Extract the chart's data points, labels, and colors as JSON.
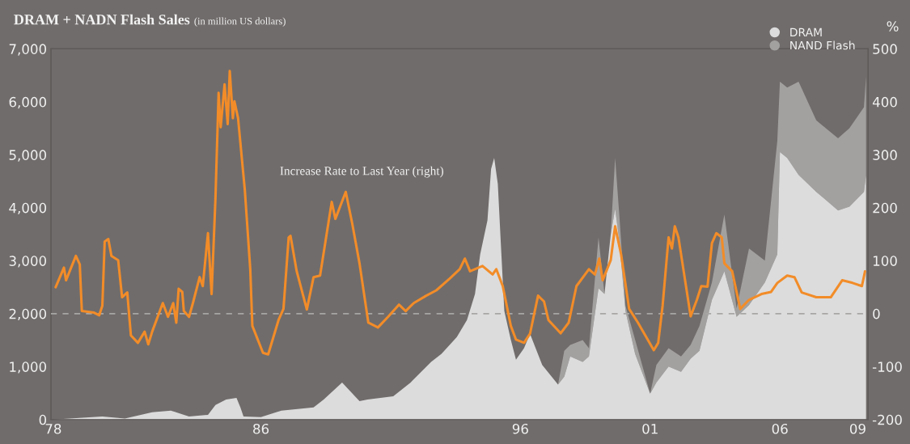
{
  "chart_data": {
    "type": "area",
    "title": "DRAM + NADN Flash Sales",
    "subtitle": "(in million US dollars)",
    "y2label": "%",
    "annotations": [
      "Increase Rate to Last Year (right)"
    ],
    "stacked": true,
    "x": [
      1978.0,
      1979.89,
      1980.76,
      1981.81,
      1982.53,
      1983.23,
      1983.96,
      1984.25,
      1984.66,
      1985.06,
      1985.21,
      1985.33,
      1986.0,
      1986.79,
      1988.03,
      1988.42,
      1989.13,
      1989.8,
      1990.11,
      1991.1,
      1991.77,
      1992.56,
      1992.96,
      1993.55,
      1993.94,
      1994.25,
      1994.45,
      1994.73,
      1994.87,
      1994.99,
      1995.13,
      1995.24,
      1995.38,
      1995.63,
      1995.83,
      1996.14,
      1996.37,
      1996.84,
      1997.45,
      1997.69,
      1997.92,
      1998.4,
      1998.64,
      1999.01,
      1999.24,
      1999.48,
      1999.65,
      1999.81,
      2000.05,
      2000.42,
      2001.0,
      2001.24,
      2001.71,
      2002.19,
      2002.56,
      2002.9,
      2003.38,
      2003.86,
      2004.33,
      2004.81,
      2005.42,
      2005.9,
      2006.0,
      2006.28,
      2006.72,
      2007.4,
      2008.24,
      2008.68,
      2009.24,
      2009.32
    ],
    "series": [
      {
        "name": "DRAM",
        "color": "#dcdcdc",
        "values": [
          0,
          60,
          20,
          140,
          170,
          60,
          90,
          275,
          380,
          410,
          230,
          60,
          45,
          170,
          230,
          380,
          700,
          350,
          380,
          440,
          700,
          1090,
          1240,
          1560,
          1880,
          2370,
          3120,
          3760,
          4730,
          4940,
          4450,
          3380,
          2050,
          1510,
          1130,
          1350,
          1620,
          1030,
          660,
          810,
          1190,
          1090,
          1190,
          2480,
          2370,
          3490,
          3980,
          3380,
          2050,
          1240,
          490,
          700,
          1000,
          900,
          1150,
          1300,
          2260,
          2800,
          1940,
          2160,
          2590,
          3120,
          5050,
          4940,
          4620,
          4300,
          3950,
          4020,
          4300,
          4620
        ]
      },
      {
        "name": "NAND Flash",
        "color": "#a3a1a0",
        "values": [
          0,
          0,
          0,
          0,
          0,
          0,
          0,
          0,
          0,
          0,
          0,
          0,
          0,
          0,
          0,
          0,
          0,
          0,
          0,
          0,
          0,
          0,
          0,
          0,
          0,
          0,
          0,
          0,
          0,
          0,
          0,
          0,
          0,
          0,
          0,
          0,
          0,
          0,
          0,
          490,
          220,
          410,
          160,
          960,
          0,
          0,
          960,
          490,
          100,
          270,
          0,
          330,
          350,
          290,
          260,
          470,
          330,
          1070,
          160,
          1070,
          410,
          2140,
          1330,
          1330,
          1760,
          1350,
          1360,
          1480,
          1600,
          1860
        ]
      },
      {
        "type": "line",
        "axis": "y2",
        "color": "#f28c28",
        "x": [
          1978.09,
          1978.41,
          1978.49,
          1978.87,
          1979.02,
          1979.1,
          1979.57,
          1979.77,
          1979.89,
          1979.98,
          1980.12,
          1980.24,
          1980.5,
          1980.65,
          1980.85,
          1980.99,
          1981.26,
          1981.52,
          1981.66,
          1981.81,
          1982.22,
          1982.42,
          1982.62,
          1982.74,
          1982.83,
          1982.97,
          1983.03,
          1983.23,
          1983.38,
          1983.64,
          1983.76,
          1983.96,
          1984.1,
          1984.25,
          1984.37,
          1984.45,
          1984.6,
          1984.72,
          1984.8,
          1984.92,
          1984.98,
          1985.12,
          1985.38,
          1985.59,
          1985.67,
          1986.08,
          1986.28,
          1986.68,
          1986.87,
          1987.07,
          1987.14,
          1987.38,
          1987.77,
          1988.03,
          1988.28,
          1988.73,
          1988.87,
          1989.27,
          1989.52,
          1989.8,
          1990.14,
          1990.51,
          1990.9,
          1991.32,
          1991.58,
          1991.89,
          1992.37,
          1992.76,
          1993.27,
          1993.66,
          1993.86,
          1994.06,
          1994.54,
          1994.93,
          1995.07,
          1995.32,
          1995.63,
          1995.83,
          1996.14,
          1996.37,
          1996.68,
          1996.91,
          1997.08,
          1997.55,
          1997.86,
          1998.16,
          1998.64,
          1998.87,
          1999.04,
          1999.17,
          1999.48,
          1999.65,
          1999.88,
          2000.19,
          2000.53,
          2001.14,
          2001.31,
          2001.48,
          2001.71,
          2001.84,
          2001.95,
          2002.09,
          2002.56,
          2002.8,
          2002.97,
          2003.21,
          2003.38,
          2003.55,
          2003.76,
          2003.86,
          2004.16,
          2004.47,
          2004.81,
          2005.29,
          2005.66,
          2005.9,
          2006.28,
          2006.56,
          2006.84,
          2007.4,
          2007.96,
          2008.4,
          2008.8,
          2009.16,
          2009.28
        ],
        "values": [
          50,
          87,
          63,
          109,
          93,
          5,
          2,
          -3,
          15,
          136,
          141,
          109,
          101,
          31,
          40,
          -41,
          -55,
          -34,
          -58,
          -34,
          20,
          -6,
          20,
          -17,
          47,
          41,
          5,
          -6,
          20,
          69,
          52,
          152,
          37,
          219,
          417,
          352,
          433,
          358,
          458,
          369,
          401,
          369,
          234,
          84,
          -23,
          -74,
          -77,
          -12,
          9,
          144,
          147,
          80,
          8,
          69,
          72,
          211,
          179,
          230,
          170,
          95,
          -17,
          -26,
          -6,
          17,
          5,
          20,
          34,
          44,
          66,
          84,
          104,
          80,
          90,
          74,
          84,
          52,
          -23,
          -49,
          -55,
          -38,
          34,
          23,
          -12,
          -37,
          -17,
          52,
          84,
          74,
          104,
          63,
          101,
          165,
          112,
          9,
          -17,
          -69,
          -55,
          15,
          144,
          123,
          165,
          144,
          -5,
          26,
          52,
          51,
          133,
          152,
          144,
          95,
          80,
          9,
          26,
          37,
          41,
          58,
          72,
          69,
          40,
          31,
          31,
          63,
          58,
          52,
          80
        ]
      }
    ],
    "xlim": [
      1977.91,
      2009.4
    ],
    "xticks": [
      {
        "value": 1978,
        "label": "78"
      },
      {
        "value": 1986,
        "label": "86"
      },
      {
        "value": 1996,
        "label": "96"
      },
      {
        "value": 2001,
        "label": "01"
      },
      {
        "value": 2006,
        "label": "06"
      },
      {
        "value": 2009,
        "label": "09"
      }
    ],
    "ylim": [
      0,
      7000
    ],
    "yticks": [
      0,
      {
        "value": 1000,
        "label": "1,000"
      },
      {
        "value": 2000,
        "label": "2,000"
      },
      {
        "value": 3000,
        "label": "3,000"
      },
      {
        "value": 4000,
        "label": "4,000"
      },
      {
        "value": 5000,
        "label": "5,000"
      },
      {
        "value": 6000,
        "label": "6,000"
      },
      {
        "value": 7000,
        "label": "7,000"
      }
    ],
    "y2lim": [
      -200,
      500
    ],
    "y2ticks": [
      -200,
      -100,
      0,
      100,
      200,
      300,
      400,
      500
    ],
    "ref_lines": [
      {
        "axis": "y2",
        "value": 0,
        "color": "#a8a6a5",
        "line_style": "dashed"
      }
    ],
    "grid": false,
    "legend": "top right",
    "marker": "none",
    "line_style": "solid"
  }
}
